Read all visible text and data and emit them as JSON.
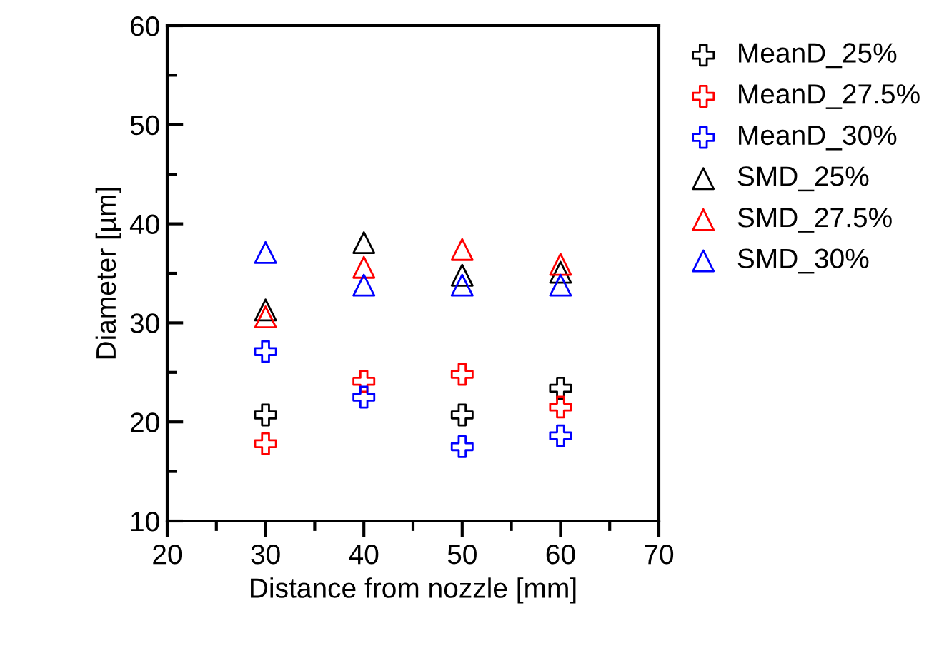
{
  "chart_data": {
    "type": "scatter",
    "xlabel": "Distance from nozzle [mm]",
    "ylabel": "Diameter [µm]",
    "xlim": [
      20,
      70
    ],
    "xticks": [
      20,
      30,
      40,
      50,
      60,
      70
    ],
    "ylim": [
      10,
      60
    ],
    "yticks": [
      10,
      20,
      30,
      40,
      50,
      60
    ],
    "grid": false,
    "legend": "right",
    "x": [
      30,
      40,
      50,
      60
    ],
    "series": [
      {
        "name": "MeanD_25%",
        "color": "#000000",
        "marker": "cross",
        "values": [
          20.7,
          null,
          20.7,
          23.4
        ]
      },
      {
        "name": "MeanD_27.5%",
        "color": "#ff0000",
        "marker": "cross",
        "values": [
          17.8,
          24.1,
          24.8,
          21.5
        ]
      },
      {
        "name": "MeanD_30%",
        "color": "#0000ff",
        "marker": "cross",
        "values": [
          27.1,
          22.5,
          17.5,
          18.6
        ]
      },
      {
        "name": "SMD_25%",
        "color": "#000000",
        "marker": "triangle",
        "values": [
          31.3,
          38.1,
          34.8,
          35.1
        ]
      },
      {
        "name": "SMD_27.5%",
        "color": "#ff0000",
        "marker": "triangle",
        "values": [
          30.6,
          35.6,
          37.4,
          35.9
        ]
      },
      {
        "name": "SMD_30%",
        "color": "#0000ff",
        "marker": "triangle",
        "values": [
          37.1,
          33.8,
          33.8,
          33.8
        ]
      }
    ]
  }
}
